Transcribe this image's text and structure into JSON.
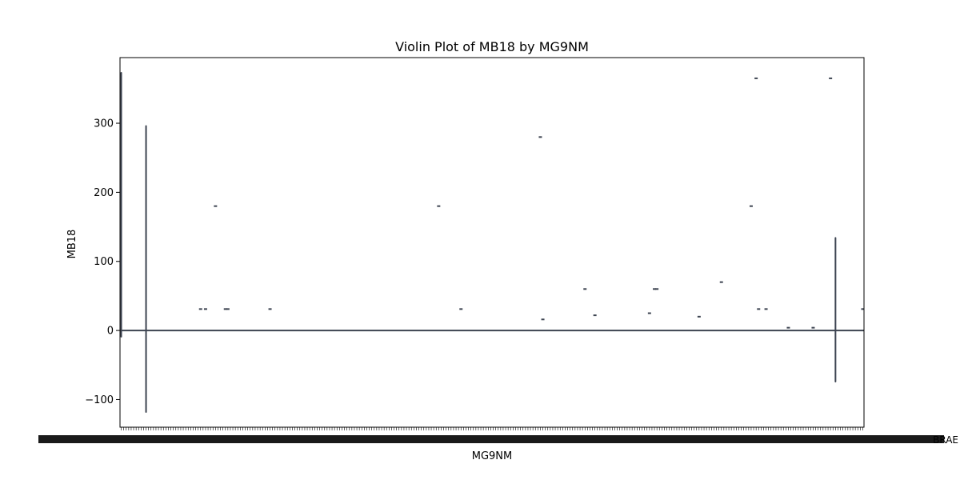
{
  "chart_data": {
    "type": "violin",
    "title": "Violin Plot of MB18 by MG9NM",
    "xlabel": "MG9NM",
    "ylabel": "MB18",
    "ylim": [
      -140,
      395
    ],
    "yticks": [
      -100,
      0,
      100,
      200,
      300
    ],
    "ytick_labels": [
      "−100",
      "0",
      "100",
      "200",
      "300"
    ],
    "category_count": 300,
    "edge_label": "BRAE",
    "violin_color": "#3d4451",
    "baseline_value": 0,
    "vertical_violins": [
      {
        "position": 0,
        "min": -9,
        "max": 373
      },
      {
        "position": 10,
        "min": -118,
        "max": 296
      },
      {
        "position": 288,
        "min": -74,
        "max": 134
      }
    ],
    "markers": [
      {
        "position": 32,
        "value": 31
      },
      {
        "position": 34,
        "value": 31
      },
      {
        "position": 38,
        "value": 180
      },
      {
        "position": 42,
        "value": 31
      },
      {
        "position": 43,
        "value": 31
      },
      {
        "position": 60,
        "value": 31
      },
      {
        "position": 128,
        "value": 180
      },
      {
        "position": 137,
        "value": 31
      },
      {
        "position": 169,
        "value": 280
      },
      {
        "position": 170,
        "value": 16
      },
      {
        "position": 187,
        "value": 60
      },
      {
        "position": 191,
        "value": 22
      },
      {
        "position": 213,
        "value": 25
      },
      {
        "position": 215,
        "value": 60
      },
      {
        "position": 216,
        "value": 60
      },
      {
        "position": 233,
        "value": 20
      },
      {
        "position": 242,
        "value": 70
      },
      {
        "position": 254,
        "value": 180
      },
      {
        "position": 256,
        "value": 365
      },
      {
        "position": 257,
        "value": 31
      },
      {
        "position": 260,
        "value": 31
      },
      {
        "position": 269,
        "value": 4
      },
      {
        "position": 279,
        "value": 4
      },
      {
        "position": 286,
        "value": 365
      },
      {
        "position": 299,
        "value": 31
      }
    ]
  }
}
